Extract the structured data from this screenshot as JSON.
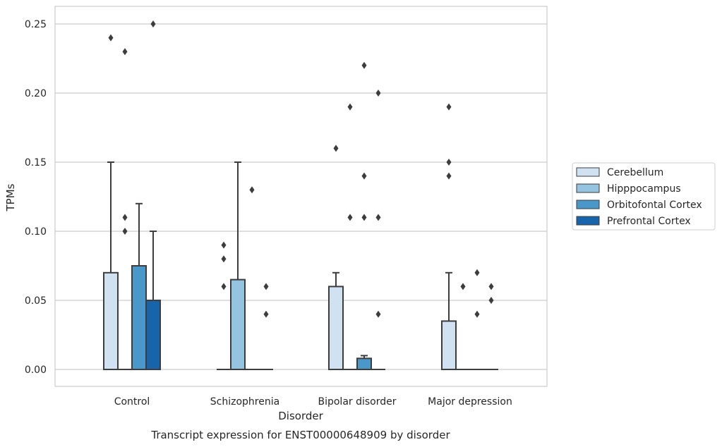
{
  "chart_data": {
    "type": "boxplot",
    "caption": "Transcript expression for ENST00000648909 by disorder",
    "xlabel": "Disorder",
    "ylabel": "TPMs",
    "ylim": [
      -0.012,
      0.263
    ],
    "yticks": [
      0.0,
      0.05,
      0.1,
      0.15,
      0.2,
      0.25
    ],
    "ytick_labels": [
      "0.00",
      "0.05",
      "0.10",
      "0.15",
      "0.20",
      "0.25"
    ],
    "grid": true,
    "legend_position": "right",
    "categories": [
      "Control",
      "Schizophrenia",
      "Bipolar disorder",
      "Major depression"
    ],
    "series": [
      {
        "name": "Cerebellum",
        "color": "#d0e1f2",
        "boxes": [
          {
            "q1": 0.0,
            "median": 0.0,
            "q3": 0.07,
            "whisker_low": 0.0,
            "whisker_high": 0.15,
            "outliers": [
              0.24
            ]
          },
          {
            "q1": 0.0,
            "median": 0.0,
            "q3": 0.0,
            "whisker_low": 0.0,
            "whisker_high": 0.0,
            "outliers": [
              0.06,
              0.08,
              0.09
            ]
          },
          {
            "q1": 0.0,
            "median": 0.0,
            "q3": 0.06,
            "whisker_low": 0.0,
            "whisker_high": 0.07,
            "outliers": [
              0.16
            ]
          },
          {
            "q1": 0.0,
            "median": 0.0,
            "q3": 0.035,
            "whisker_low": 0.0,
            "whisker_high": 0.07,
            "outliers": [
              0.14,
              0.15,
              0.19
            ]
          }
        ]
      },
      {
        "name": "Hipppocampus",
        "color": "#94c4df",
        "boxes": [
          {
            "q1": 0.0,
            "median": 0.0,
            "q3": 0.0,
            "whisker_low": 0.0,
            "whisker_high": 0.0,
            "outliers": [
              0.1,
              0.11,
              0.23
            ]
          },
          {
            "q1": 0.0,
            "median": 0.0,
            "q3": 0.065,
            "whisker_low": 0.0,
            "whisker_high": 0.15,
            "outliers": []
          },
          {
            "q1": 0.0,
            "median": 0.0,
            "q3": 0.0,
            "whisker_low": 0.0,
            "whisker_high": 0.0,
            "outliers": [
              0.11,
              0.19
            ]
          },
          {
            "q1": 0.0,
            "median": 0.0,
            "q3": 0.0,
            "whisker_low": 0.0,
            "whisker_high": 0.0,
            "outliers": [
              0.06
            ]
          }
        ]
      },
      {
        "name": "Orbitofontal Cortex",
        "color": "#4a98c9",
        "boxes": [
          {
            "q1": 0.0,
            "median": 0.0,
            "q3": 0.075,
            "whisker_low": 0.0,
            "whisker_high": 0.12,
            "outliers": []
          },
          {
            "q1": 0.0,
            "median": 0.0,
            "q3": 0.0,
            "whisker_low": 0.0,
            "whisker_high": 0.0,
            "outliers": [
              0.13
            ]
          },
          {
            "q1": 0.0,
            "median": 0.0,
            "q3": 0.008,
            "whisker_low": 0.0,
            "whisker_high": 0.01,
            "outliers": [
              0.11,
              0.14,
              0.22
            ]
          },
          {
            "q1": 0.0,
            "median": 0.0,
            "q3": 0.0,
            "whisker_low": 0.0,
            "whisker_high": 0.0,
            "outliers": [
              0.04,
              0.07
            ]
          }
        ]
      },
      {
        "name": "Prefrontal Cortex",
        "color": "#1764ab",
        "boxes": [
          {
            "q1": 0.0,
            "median": 0.0,
            "q3": 0.05,
            "whisker_low": 0.0,
            "whisker_high": 0.1,
            "outliers": [
              0.25
            ]
          },
          {
            "q1": 0.0,
            "median": 0.0,
            "q3": 0.0,
            "whisker_low": 0.0,
            "whisker_high": 0.0,
            "outliers": [
              0.04,
              0.06
            ]
          },
          {
            "q1": 0.0,
            "median": 0.0,
            "q3": 0.0,
            "whisker_low": 0.0,
            "whisker_high": 0.0,
            "outliers": [
              0.04,
              0.11,
              0.2
            ]
          },
          {
            "q1": 0.0,
            "median": 0.0,
            "q3": 0.0,
            "whisker_low": 0.0,
            "whisker_high": 0.0,
            "outliers": [
              0.05,
              0.06
            ]
          }
        ]
      }
    ]
  }
}
